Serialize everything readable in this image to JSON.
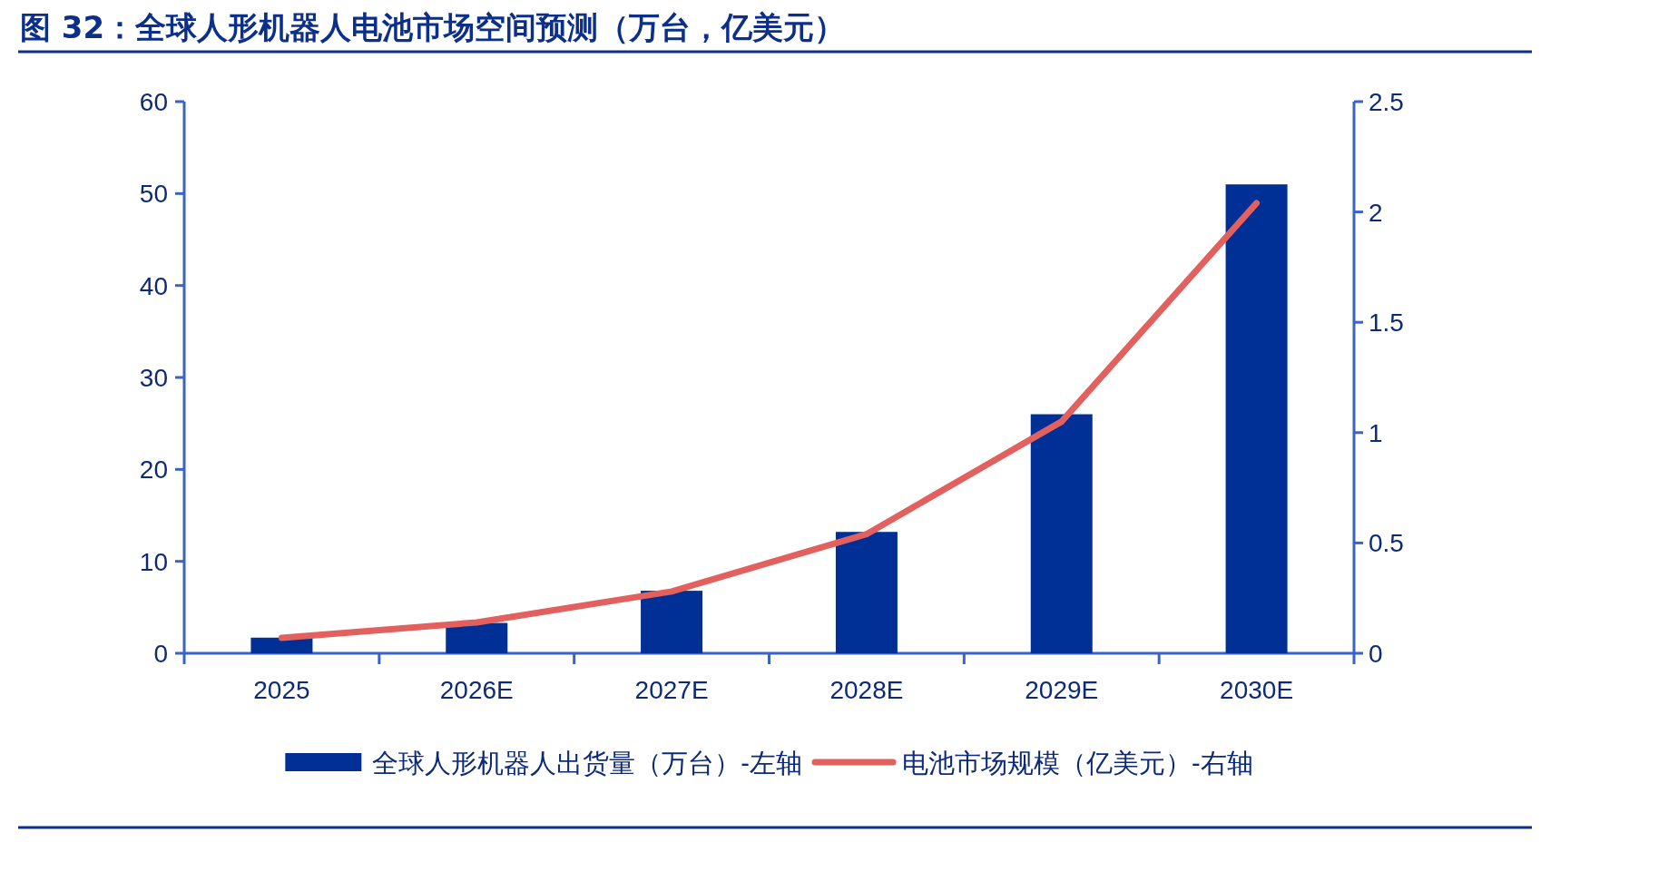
{
  "chart_data": {
    "type": "bar",
    "title": "图 32：全球人形机器人电池市场空间预测（万台，亿美元）",
    "categories": [
      "2025",
      "2026E",
      "2027E",
      "2028E",
      "2029E",
      "2030E"
    ],
    "series": [
      {
        "name": "全球人形机器人出货量（万台）-左轴",
        "color": "#003096",
        "values": [
          1.7,
          3.3,
          6.8,
          13.2,
          26.0,
          51.0
        ]
      },
      {
        "name": "电池市场规模（亿美元）-右轴",
        "type": "line",
        "axis": "y2",
        "color": "#e2605e",
        "values": [
          0.07,
          0.14,
          0.28,
          0.54,
          1.05,
          2.04
        ]
      }
    ],
    "ylim": [
      0,
      60
    ],
    "yticks": [
      0,
      10,
      20,
      30,
      40,
      50,
      60
    ],
    "y2lim": [
      0,
      2.5
    ],
    "y2ticks": [
      0,
      0.5,
      1,
      1.5,
      2,
      2.5
    ],
    "legend": "bottom"
  }
}
